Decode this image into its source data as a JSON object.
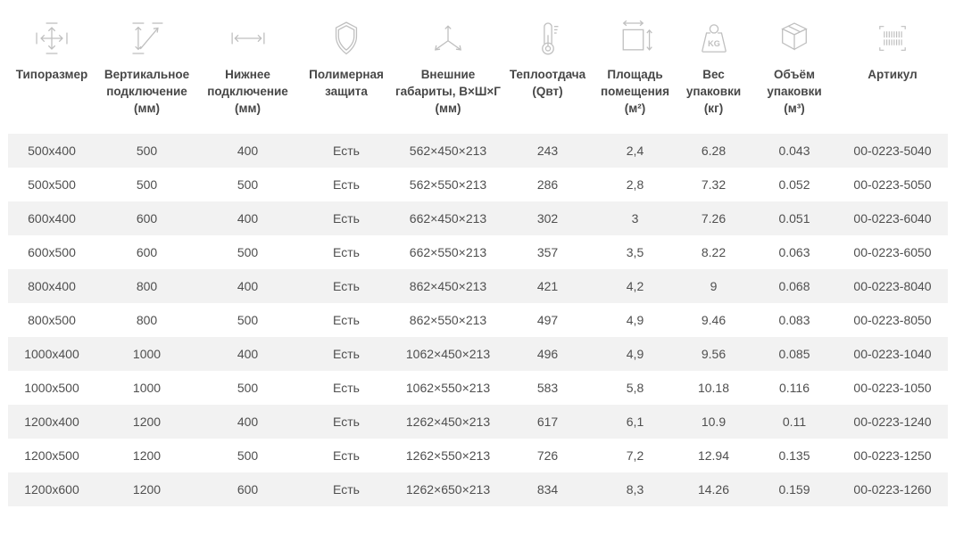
{
  "colors": {
    "row_alt": "#f2f2f2",
    "cell_text": "#4f4f4f",
    "header_text": "#474747",
    "icon": "#bfbfbf"
  },
  "table": {
    "columns": [
      {
        "id": "size",
        "icon": "move-arrows-icon",
        "lines": [
          "Типоразмер"
        ]
      },
      {
        "id": "vertical-connection",
        "icon": "vertical-connection-icon",
        "lines": [
          "Вертикальное",
          "подключение",
          "(мм)"
        ]
      },
      {
        "id": "bottom-connection",
        "icon": "horizontal-arrow-icon",
        "lines": [
          "Нижнее",
          "подключение",
          "(мм)"
        ]
      },
      {
        "id": "polymer-protection",
        "icon": "shield-icon",
        "lines": [
          "Полимерная",
          "защита"
        ]
      },
      {
        "id": "outer-dimensions",
        "icon": "dimensions-3d-icon",
        "lines": [
          "Внешние",
          "габариты, В×Ш×Г",
          "(мм)"
        ]
      },
      {
        "id": "heat-output",
        "icon": "thermometer-icon",
        "lines": [
          "Теплоотдача",
          "(Qвт)"
        ]
      },
      {
        "id": "room-area",
        "icon": "area-icon",
        "lines": [
          "Площадь",
          "помещения",
          "(м²)"
        ]
      },
      {
        "id": "package-weight",
        "icon": "weight-kg-icon",
        "lines": [
          "Вес",
          "упаковки",
          "(кг)"
        ]
      },
      {
        "id": "package-volume",
        "icon": "package-box-icon",
        "lines": [
          "Объём",
          "упаковки",
          "(м³)"
        ]
      },
      {
        "id": "sku",
        "icon": "barcode-icon",
        "lines": [
          "Артикул"
        ]
      }
    ],
    "rows": [
      [
        "500x400",
        "500",
        "400",
        "Есть",
        "562×450×213",
        "243",
        "2,4",
        "6.28",
        "0.043",
        "00-0223-5040"
      ],
      [
        "500x500",
        "500",
        "500",
        "Есть",
        "562×550×213",
        "286",
        "2,8",
        "7.32",
        "0.052",
        "00-0223-5050"
      ],
      [
        "600x400",
        "600",
        "400",
        "Есть",
        "662×450×213",
        "302",
        "3",
        "7.26",
        "0.051",
        "00-0223-6040"
      ],
      [
        "600x500",
        "600",
        "500",
        "Есть",
        "662×550×213",
        "357",
        "3,5",
        "8.22",
        "0.063",
        "00-0223-6050"
      ],
      [
        "800x400",
        "800",
        "400",
        "Есть",
        "862×450×213",
        "421",
        "4,2",
        "9",
        "0.068",
        "00-0223-8040"
      ],
      [
        "800x500",
        "800",
        "500",
        "Есть",
        "862×550×213",
        "497",
        "4,9",
        "9.46",
        "0.083",
        "00-0223-8050"
      ],
      [
        "1000x400",
        "1000",
        "400",
        "Есть",
        "1062×450×213",
        "496",
        "4,9",
        "9.56",
        "0.085",
        "00-0223-1040"
      ],
      [
        "1000x500",
        "1000",
        "500",
        "Есть",
        "1062×550×213",
        "583",
        "5,8",
        "10.18",
        "0.116",
        "00-0223-1050"
      ],
      [
        "1200x400",
        "1200",
        "400",
        "Есть",
        "1262×450×213",
        "617",
        "6,1",
        "10.9",
        "0.11",
        "00-0223-1240"
      ],
      [
        "1200x500",
        "1200",
        "500",
        "Есть",
        "1262×550×213",
        "726",
        "7,2",
        "12.94",
        "0.135",
        "00-0223-1250"
      ],
      [
        "1200x600",
        "1200",
        "600",
        "Есть",
        "1262×650×213",
        "834",
        "8,3",
        "14.26",
        "0.159",
        "00-0223-1260"
      ]
    ]
  }
}
